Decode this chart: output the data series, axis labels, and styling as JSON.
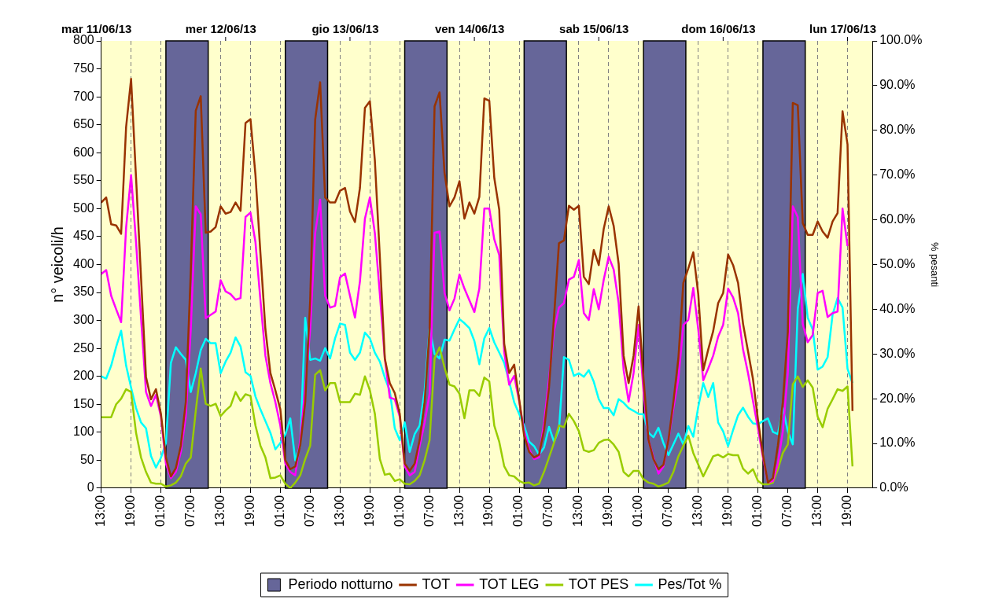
{
  "chart_data": {
    "type": "line",
    "ylabel": "n° veicoli/h",
    "y2label": "% pesanti",
    "annotations": [
      "mar 11/06/13",
      "mer 12/06/13",
      "gio 13/06/13",
      "ven 14/06/13",
      "sab 15/06/13",
      "dom 16/06/13",
      "lun 17/06/13"
    ],
    "x": [
      "--06-11T13:00",
      "--06-11T14:00",
      "--06-11T15:00",
      "--06-11T16:00",
      "--06-11T17:00",
      "--06-11T18:00",
      "--06-11T19:00",
      "--06-11T20:00",
      "--06-11T21:00",
      "--06-11T22:00",
      "--06-11T23:00",
      "--06-12T00:00",
      "--06-12T01:00",
      "--06-12T02:00",
      "--06-12T03:00",
      "--06-12T04:00",
      "--06-12T05:00",
      "--06-12T06:00",
      "--06-12T07:00",
      "--06-12T08:00",
      "--06-12T09:00",
      "--06-12T10:00",
      "--06-12T11:00",
      "--06-12T12:00",
      "--06-12T13:00",
      "--06-12T14:00",
      "--06-12T15:00",
      "--06-12T16:00",
      "--06-12T17:00",
      "--06-12T18:00",
      "--06-12T19:00",
      "--06-12T20:00",
      "--06-12T21:00",
      "--06-12T22:00",
      "--06-12T23:00",
      "--06-13T00:00",
      "--06-13T01:00",
      "--06-13T02:00",
      "--06-13T03:00",
      "--06-13T04:00",
      "--06-13T05:00",
      "--06-13T06:00",
      "--06-13T07:00",
      "--06-13T08:00",
      "--06-13T09:00",
      "--06-13T10:00",
      "--06-13T11:00",
      "--06-13T12:00",
      "--06-13T13:00",
      "--06-13T14:00",
      "--06-13T15:00",
      "--06-13T16:00",
      "--06-13T17:00",
      "--06-13T18:00",
      "--06-13T19:00",
      "--06-13T20:00",
      "--06-13T21:00",
      "--06-13T22:00",
      "--06-13T23:00",
      "--06-14T00:00",
      "--06-14T01:00",
      "--06-14T02:00",
      "--06-14T03:00",
      "--06-14T04:00",
      "--06-14T05:00",
      "--06-14T06:00",
      "--06-14T07:00",
      "--06-14T08:00",
      "--06-14T09:00",
      "--06-14T10:00",
      "--06-14T11:00",
      "--06-14T12:00",
      "--06-14T13:00",
      "--06-14T14:00",
      "--06-14T15:00",
      "--06-14T16:00",
      "--06-14T17:00",
      "--06-14T18:00",
      "--06-14T19:00",
      "--06-14T20:00",
      "--06-14T21:00",
      "--06-14T22:00",
      "--06-14T23:00",
      "--06-15T00:00",
      "--06-15T01:00",
      "--06-15T02:00",
      "--06-15T03:00",
      "--06-15T04:00",
      "--06-15T05:00",
      "--06-15T06:00",
      "--06-15T07:00",
      "--06-15T08:00",
      "--06-15T09:00",
      "--06-15T10:00",
      "--06-15T11:00",
      "--06-15T12:00",
      "--06-15T13:00",
      "--06-15T14:00",
      "--06-15T15:00",
      "--06-15T16:00",
      "--06-15T17:00",
      "--06-15T18:00",
      "--06-15T19:00",
      "--06-15T20:00",
      "--06-15T21:00",
      "--06-15T22:00",
      "--06-15T23:00",
      "--06-16T00:00",
      "--06-16T01:00",
      "--06-16T02:00",
      "--06-16T03:00",
      "--06-16T04:00",
      "--06-16T05:00",
      "--06-16T06:00",
      "--06-16T07:00",
      "--06-16T08:00",
      "--06-16T09:00",
      "--06-16T10:00",
      "--06-16T11:00",
      "--06-16T12:00",
      "--06-16T13:00",
      "--06-16T14:00",
      "--06-16T15:00",
      "--06-16T16:00",
      "--06-16T17:00",
      "--06-16T18:00",
      "--06-16T19:00",
      "--06-16T20:00",
      "--06-16T21:00",
      "--06-16T22:00",
      "--06-16T23:00",
      "--06-17T00:00",
      "--06-17T01:00",
      "--06-17T02:00",
      "--06-17T03:00",
      "--06-17T04:00",
      "--06-17T05:00",
      "--06-17T06:00",
      "--06-17T07:00",
      "--06-17T08:00",
      "--06-17T09:00",
      "--06-17T10:00",
      "--06-17T11:00",
      "--06-17T12:00",
      "--06-17T13:00",
      "--06-17T14:00",
      "--06-17T15:00",
      "--06-17T16:00",
      "--06-17T17:00",
      "--06-17T18:00",
      "--06-17T19:00",
      "--06-17T20:00"
    ],
    "xlim": [
      "--06-11T13:00",
      "--06-18T00:00"
    ],
    "xticks": [
      {
        "value": "--06-11T13:00",
        "label": "13:00"
      },
      {
        "value": "--06-11T19:00",
        "label": "19:00"
      },
      {
        "value": "--06-12T01:00",
        "label": "01:00"
      },
      {
        "value": "--06-12T07:00",
        "label": "07:00"
      },
      {
        "value": "--06-12T13:00",
        "label": "13:00"
      },
      {
        "value": "--06-12T19:00",
        "label": "19:00"
      },
      {
        "value": "--06-13T01:00",
        "label": "01:00"
      },
      {
        "value": "--06-13T07:00",
        "label": "07:00"
      },
      {
        "value": "--06-13T13:00",
        "label": "13:00"
      },
      {
        "value": "--06-13T19:00",
        "label": "19:00"
      },
      {
        "value": "--06-14T01:00",
        "label": "01:00"
      },
      {
        "value": "--06-14T07:00",
        "label": "07:00"
      },
      {
        "value": "--06-14T13:00",
        "label": "13:00"
      },
      {
        "value": "--06-14T19:00",
        "label": "19:00"
      },
      {
        "value": "--06-15T01:00",
        "label": "01:00"
      },
      {
        "value": "--06-15T07:00",
        "label": "07:00"
      },
      {
        "value": "--06-15T13:00",
        "label": "13:00"
      },
      {
        "value": "--06-15T19:00",
        "label": "19:00"
      },
      {
        "value": "--06-16T01:00",
        "label": "01:00"
      },
      {
        "value": "--06-16T07:00",
        "label": "07:00"
      },
      {
        "value": "--06-16T13:00",
        "label": "13:00"
      },
      {
        "value": "--06-16T19:00",
        "label": "19:00"
      },
      {
        "value": "--06-17T01:00",
        "label": "01:00"
      },
      {
        "value": "--06-17T07:00",
        "label": "07:00"
      },
      {
        "value": "--06-17T13:00",
        "label": "13:00"
      },
      {
        "value": "--06-17T19:00",
        "label": "19:00"
      }
    ],
    "ylim": [
      0,
      800
    ],
    "yticks": [
      0,
      50,
      100,
      150,
      200,
      250,
      300,
      350,
      400,
      450,
      500,
      550,
      600,
      650,
      700,
      750,
      800
    ],
    "y2lim": [
      0,
      100
    ],
    "y2ticks": [
      {
        "value": 0,
        "label": "0.0%"
      },
      {
        "value": 10,
        "label": "10.0%"
      },
      {
        "value": 20,
        "label": "20.0%"
      },
      {
        "value": 30,
        "label": "30.0%"
      },
      {
        "value": 40,
        "label": "40.0%"
      },
      {
        "value": 50,
        "label": "50.0%"
      },
      {
        "value": 60,
        "label": "60.0%"
      },
      {
        "value": 70,
        "label": "70.0%"
      },
      {
        "value": 80,
        "label": "80.0%"
      },
      {
        "value": 90,
        "label": "90.0%"
      },
      {
        "value": 100,
        "label": "100.0%"
      }
    ],
    "grid": "x",
    "legend": "bottom",
    "bands": [
      {
        "axis": "x",
        "from": "--06-12T02:00",
        "to": "--06-12T10:30",
        "label": "Periodo notturno",
        "color": "#666699"
      },
      {
        "axis": "x",
        "from": "--06-13T02:00",
        "to": "--06-13T10:30",
        "color": "#666699"
      },
      {
        "axis": "x",
        "from": "--06-14T02:00",
        "to": "--06-14T10:30",
        "color": "#666699"
      },
      {
        "axis": "x",
        "from": "--06-15T02:00",
        "to": "--06-15T10:30",
        "color": "#666699"
      },
      {
        "axis": "x",
        "from": "--06-16T02:00",
        "to": "--06-16T10:30",
        "color": "#666699"
      },
      {
        "axis": "x",
        "from": "--06-17T02:00",
        "to": "--06-17T10:30",
        "color": "#666699"
      }
    ],
    "series": [
      {
        "name": "TOT",
        "color": "#993300",
        "values": [
          511,
          520,
          472,
          470,
          455,
          646,
          732,
          555,
          377,
          199,
          159,
          177,
          133,
          55,
          21,
          36,
          76,
          154,
          388,
          675,
          701,
          457,
          459,
          467,
          504,
          491,
          494,
          511,
          496,
          653,
          660,
          560,
          420,
          284,
          206,
          175,
          141,
          50,
          34,
          39,
          76,
          154,
          336,
          659,
          726,
          520,
          511,
          511,
          532,
          537,
          495,
          476,
          537,
          680,
          692,
          586,
          414,
          232,
          188,
          170,
          133,
          44,
          31,
          44,
          86,
          154,
          284,
          683,
          708,
          564,
          504,
          520,
          549,
          482,
          511,
          491,
          521,
          697,
          693,
          555,
          498,
          258,
          206,
          221,
          159,
          94,
          65,
          55,
          60,
          104,
          180,
          305,
          438,
          443,
          505,
          498,
          505,
          378,
          365,
          426,
          399,
          464,
          504,
          469,
          401,
          237,
          188,
          237,
          325,
          195,
          86,
          52,
          34,
          42,
          86,
          154,
          232,
          367,
          393,
          422,
          347,
          211,
          248,
          281,
          331,
          349,
          418,
          399,
          367,
          294,
          245,
          195,
          122,
          60,
          10,
          18,
          76,
          154,
          279,
          689,
          685,
          474,
          453,
          453,
          477,
          459,
          448,
          477,
          492,
          674,
          615,
          138
        ]
      },
      {
        "name": "TOT LEG",
        "color": "#ff00ff",
        "values": [
          383,
          390,
          344,
          320,
          297,
          466,
          560,
          440,
          305,
          172,
          147,
          167,
          128,
          44,
          18,
          29,
          65,
          128,
          284,
          504,
          490,
          304,
          310,
          316,
          372,
          352,
          347,
          337,
          340,
          485,
          493,
          440,
          336,
          237,
          188,
          154,
          112,
          44,
          29,
          23,
          86,
          180,
          284,
          456,
          516,
          344,
          323,
          326,
          377,
          384,
          344,
          305,
          370,
          482,
          520,
          456,
          347,
          232,
          162,
          159,
          128,
          39,
          23,
          29,
          76,
          117,
          169,
          457,
          459,
          349,
          318,
          339,
          382,
          357,
          336,
          315,
          357,
          500,
          500,
          445,
          417,
          243,
          185,
          201,
          156,
          102,
          70,
          52,
          55,
          117,
          195,
          281,
          323,
          331,
          373,
          378,
          408,
          313,
          301,
          356,
          320,
          373,
          414,
          391,
          331,
          211,
          155,
          206,
          292,
          172,
          86,
          55,
          26,
          39,
          86,
          143,
          195,
          292,
          301,
          358,
          284,
          193,
          214,
          237,
          271,
          292,
          357,
          341,
          313,
          248,
          206,
          156,
          107,
          55,
          10,
          13,
          44,
          102,
          206,
          504,
          485,
          294,
          261,
          274,
          349,
          353,
          306,
          313,
          316,
          500,
          433,
          null
        ]
      },
      {
        "name": "TOT PES",
        "color": "#99cc00",
        "values": [
          127,
          127,
          127,
          150,
          160,
          177,
          172,
          99,
          55,
          29,
          10,
          8,
          8,
          3,
          5,
          10,
          21,
          44,
          55,
          138,
          214,
          151,
          147,
          151,
          129,
          139,
          147,
          172,
          156,
          168,
          165,
          112,
          76,
          55,
          18,
          19,
          23,
          8,
          0,
          10,
          23,
          52,
          76,
          203,
          211,
          175,
          188,
          188,
          154,
          154,
          154,
          169,
          167,
          200,
          175,
          133,
          52,
          24,
          26,
          13,
          16,
          8,
          7,
          13,
          23,
          50,
          86,
          232,
          252,
          216,
          185,
          182,
          169,
          125,
          175,
          175,
          165,
          198,
          191,
          112,
          83,
          39,
          23,
          21,
          13,
          9,
          10,
          5,
          8,
          29,
          55,
          81,
          112,
          109,
          133,
          120,
          102,
          68,
          65,
          68,
          81,
          86,
          87,
          78,
          65,
          29,
          21,
          31,
          31,
          16,
          10,
          8,
          3,
          6,
          10,
          29,
          57,
          76,
          94,
          63,
          42,
          21,
          39,
          57,
          60,
          55,
          61,
          59,
          59,
          35,
          26,
          34,
          13,
          7,
          7,
          10,
          34,
          63,
          78,
          186,
          200,
          181,
          193,
          180,
          128,
          109,
          142,
          159,
          177,
          174,
          182,
          39
        ]
      },
      {
        "name": "Pes/Tot %",
        "color": "#00ffff",
        "axis": "y2",
        "values": [
          25.0,
          24.5,
          27.4,
          31.6,
          35.2,
          27.4,
          22.5,
          17.9,
          14.7,
          13.4,
          7.2,
          4.6,
          6.8,
          10.1,
          28.0,
          31.5,
          30.0,
          28.7,
          21.5,
          25.7,
          30.9,
          33.4,
          32.4,
          32.4,
          25.7,
          28.3,
          30.3,
          33.7,
          31.7,
          25.9,
          25.1,
          20.5,
          17.6,
          15.0,
          12.4,
          8.7,
          10.1,
          12.0,
          15.6,
          6.2,
          9.4,
          38.1,
          28.7,
          29.0,
          28.5,
          31.3,
          29.0,
          33.5,
          36.8,
          36.5,
          30.3,
          28.7,
          30.3,
          34.8,
          33.5,
          30.3,
          28.3,
          24.7,
          21.8,
          13.4,
          10.7,
          14.7,
          8.1,
          12.1,
          14.0,
          21.8,
          35.8,
          30.0,
          29.0,
          33.2,
          33.0,
          35.5,
          37.8,
          36.9,
          35.8,
          32.9,
          27.7,
          33.5,
          35.8,
          32.6,
          30.3,
          28.0,
          23.8,
          19.2,
          16.6,
          14.0,
          10.4,
          9.4,
          7.5,
          9.1,
          13.7,
          10.4,
          13.0,
          29.3,
          28.7,
          25.1,
          25.7,
          24.9,
          26.4,
          23.8,
          19.9,
          17.9,
          17.9,
          16.3,
          19.9,
          19.1,
          17.9,
          17.3,
          16.6,
          16.5,
          12.4,
          11.4,
          13.5,
          10.1,
          7.4,
          9.8,
          12.2,
          9.8,
          13.9,
          11.5,
          18.2,
          23.5,
          20.4,
          23.5,
          14.7,
          12.7,
          9.4,
          13.0,
          16.3,
          18.0,
          16.0,
          14.5,
          14.3,
          15.0,
          15.6,
          12.6,
          12.1,
          17.9,
          12.7,
          9.8,
          40.1,
          47.9,
          38.1,
          35.5,
          26.5,
          27.2,
          29.3,
          38.8,
          42.5,
          40.4,
          26.7,
          23.5
        ]
      }
    ]
  }
}
